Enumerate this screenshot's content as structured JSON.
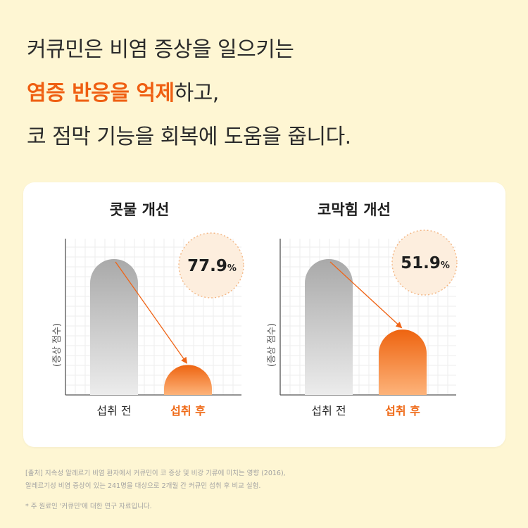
{
  "headline": {
    "line1": "커큐민은 비염 증상을 일으키는",
    "line2_highlight": "염증 반응을 억제",
    "line2_rest": "하고,",
    "line3": "코 점막 기능을 회복에 도움을 줍니다."
  },
  "colors": {
    "accent": "#ef5f12",
    "background": "#fef6d3",
    "bar_before": "#b3b3b3",
    "bar_after": "#f06a14",
    "badge_fill": "#fdeede"
  },
  "chart_data": [
    {
      "type": "bar",
      "title": "콧물 개선",
      "ylabel": "(증상 점수)",
      "categories": [
        "섭취 전",
        "섭취 후"
      ],
      "values": [
        100,
        22.1
      ],
      "ylim": [
        0,
        115
      ],
      "badge": {
        "value": "77.9",
        "unit": "%"
      },
      "grid": true,
      "arrow": "섭취 전 → 섭취 후"
    },
    {
      "type": "bar",
      "title": "코막힘 개선",
      "ylabel": "(증상 점수)",
      "categories": [
        "섭취 전",
        "섭취 후"
      ],
      "values": [
        100,
        48.1
      ],
      "ylim": [
        0,
        115
      ],
      "badge": {
        "value": "51.9",
        "unit": "%"
      },
      "grid": true,
      "arrow": "섭취 전 → 섭취 후"
    }
  ],
  "footnotes": {
    "line1": "[출처] 지속성 알레르기 비염 환자에서 커큐민이 코 증상 및 비강 기류에 미치는 영향 (2016),",
    "line2": "알레르기성 비염 증상이 있는 241명을 대상으로 2개월 간 커큐민 섭취 후 비교 실험.",
    "line3": "* 주 원료인 '커큐민'에 대한 연구 자료입니다."
  }
}
